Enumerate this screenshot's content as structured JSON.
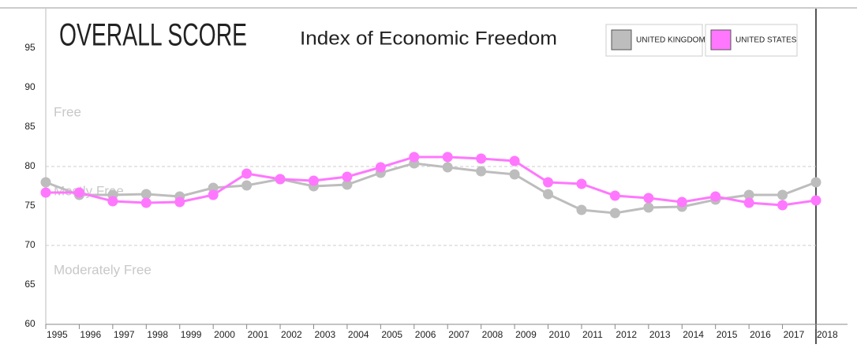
{
  "chart_data": {
    "type": "line",
    "title": "OVERALL SCORE",
    "subtitle": "Index of Economic Freedom",
    "x": [
      1995,
      1996,
      1997,
      1998,
      1999,
      2000,
      2001,
      2002,
      2003,
      2004,
      2005,
      2006,
      2007,
      2008,
      2009,
      2010,
      2011,
      2012,
      2013,
      2014,
      2015,
      2016,
      2017,
      2018
    ],
    "series": [
      {
        "name": "UNITED KINGDOM",
        "color": "#bdbdbd",
        "values": [
          78.0,
          76.4,
          76.4,
          76.5,
          76.2,
          77.3,
          77.6,
          78.4,
          77.5,
          77.7,
          79.2,
          80.4,
          79.9,
          79.4,
          79.0,
          76.5,
          74.5,
          74.1,
          74.8,
          74.9,
          75.8,
          76.4,
          76.4,
          78.0
        ]
      },
      {
        "name": "UNITED STATES",
        "color": "#ff77ff",
        "values": [
          76.7,
          76.7,
          75.6,
          75.4,
          75.5,
          76.4,
          79.1,
          78.4,
          78.2,
          78.7,
          79.9,
          81.2,
          81.2,
          81.0,
          80.7,
          78.0,
          77.8,
          76.3,
          76.0,
          75.5,
          76.2,
          75.4,
          75.1,
          75.7
        ]
      }
    ],
    "xlim": [
      1995,
      2018
    ],
    "xticks": [
      1995,
      1996,
      1997,
      1998,
      1999,
      2000,
      2001,
      2002,
      2003,
      2004,
      2005,
      2006,
      2007,
      2008,
      2009,
      2010,
      2011,
      2012,
      2013,
      2014,
      2015,
      2016,
      2017,
      2018
    ],
    "ylim": [
      60,
      100
    ],
    "yticks": [
      60,
      65,
      70,
      75,
      80,
      85,
      90,
      95
    ],
    "thresholds": [
      80,
      70
    ],
    "zone_labels": [
      "Free",
      "Mostly Free",
      "Moderately Free"
    ]
  }
}
